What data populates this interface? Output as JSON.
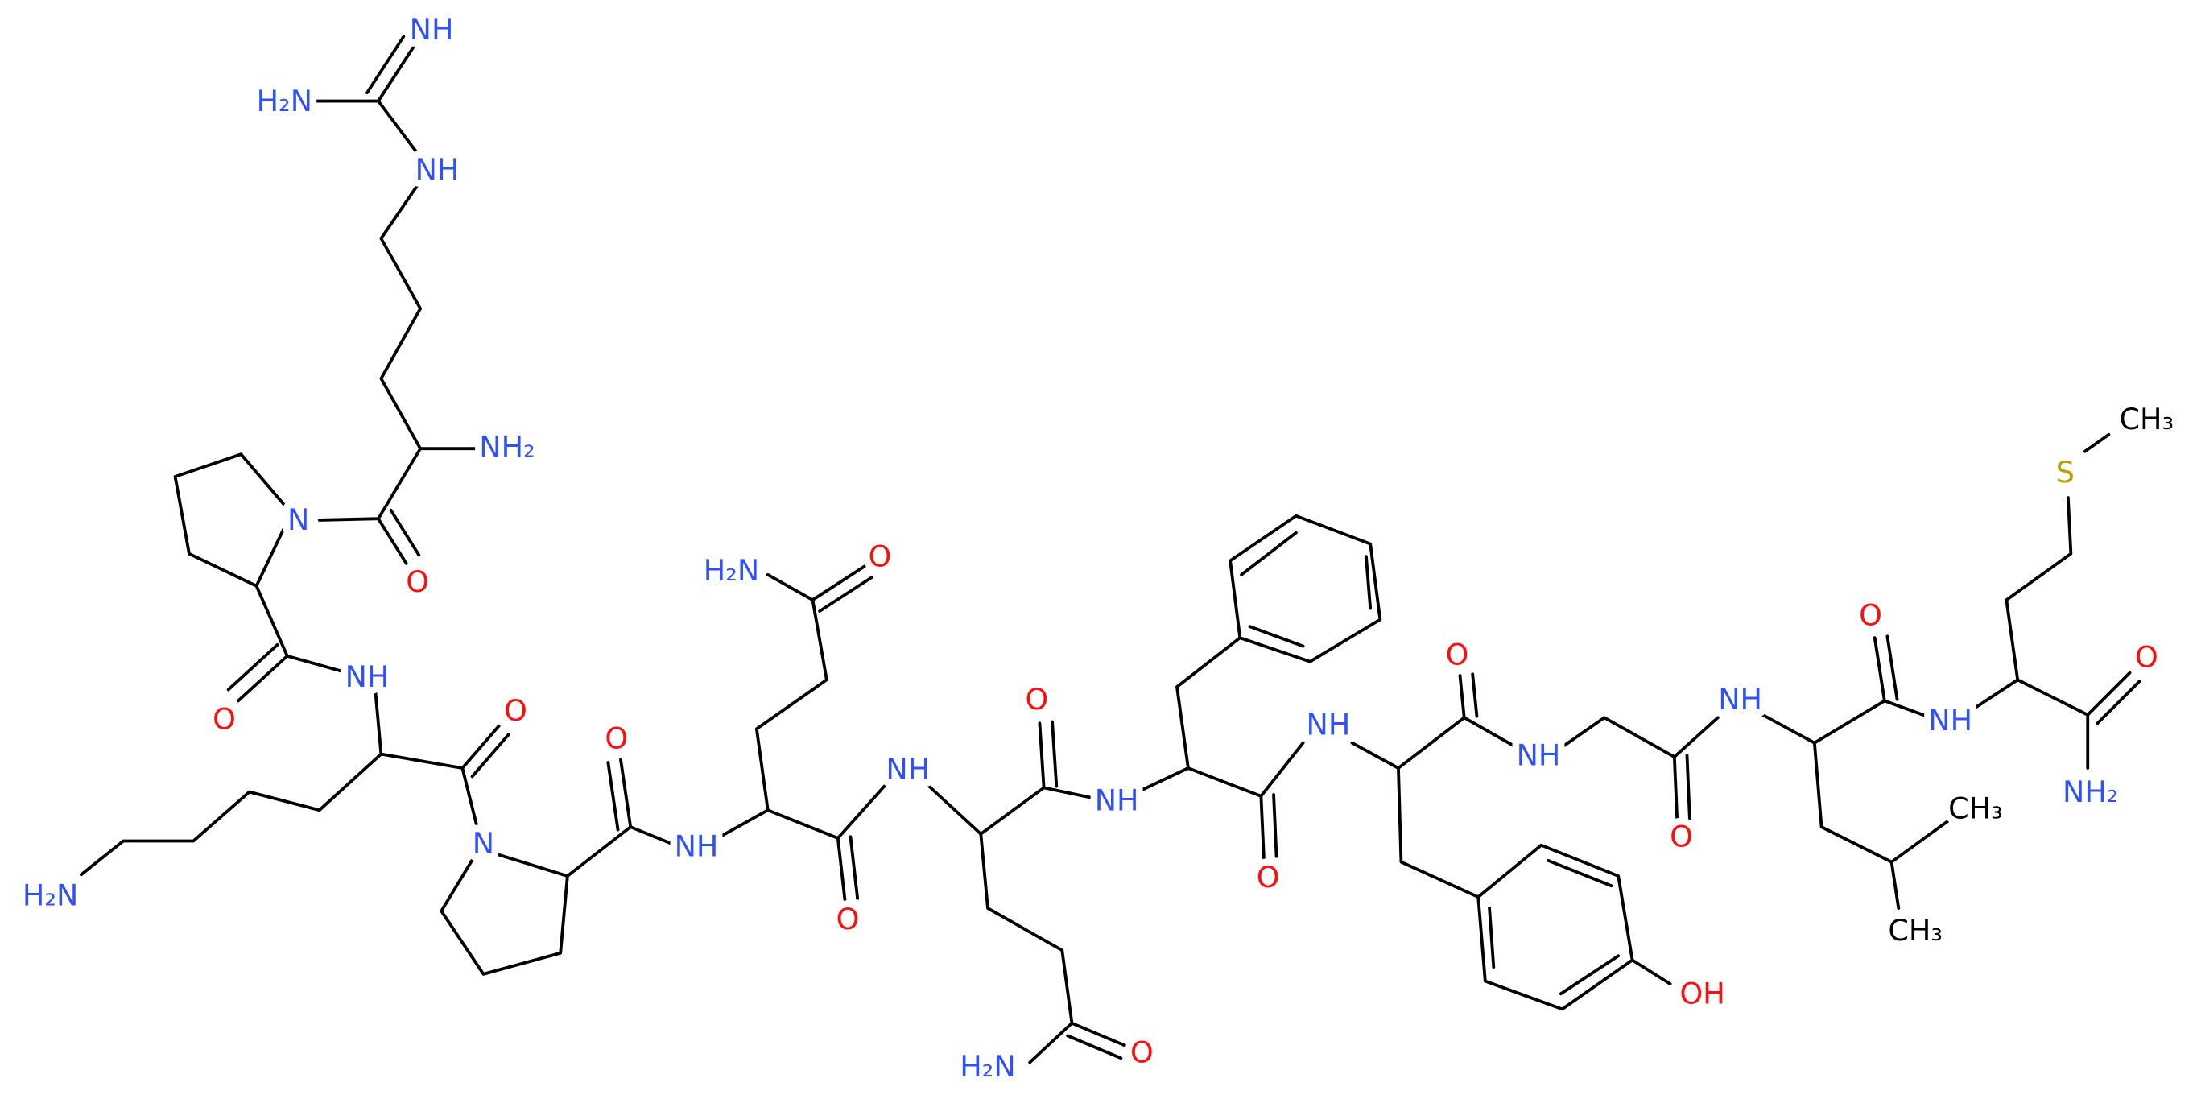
{
  "atoms": [
    "NH",
    "H₂N",
    "NH",
    "NH₂",
    "N",
    "O",
    "O",
    "NH",
    "O",
    "H₂N",
    "N",
    "O",
    "NH",
    "H₂N",
    "O",
    "O",
    "NH",
    "O",
    "H₂N",
    "O",
    "NH",
    "O",
    "NH",
    "O",
    "OH",
    "NH",
    "O",
    "NH",
    "O",
    "CH₃",
    "CH₃",
    "NH",
    "O",
    "NH₂",
    "S",
    "CH₃"
  ]
}
